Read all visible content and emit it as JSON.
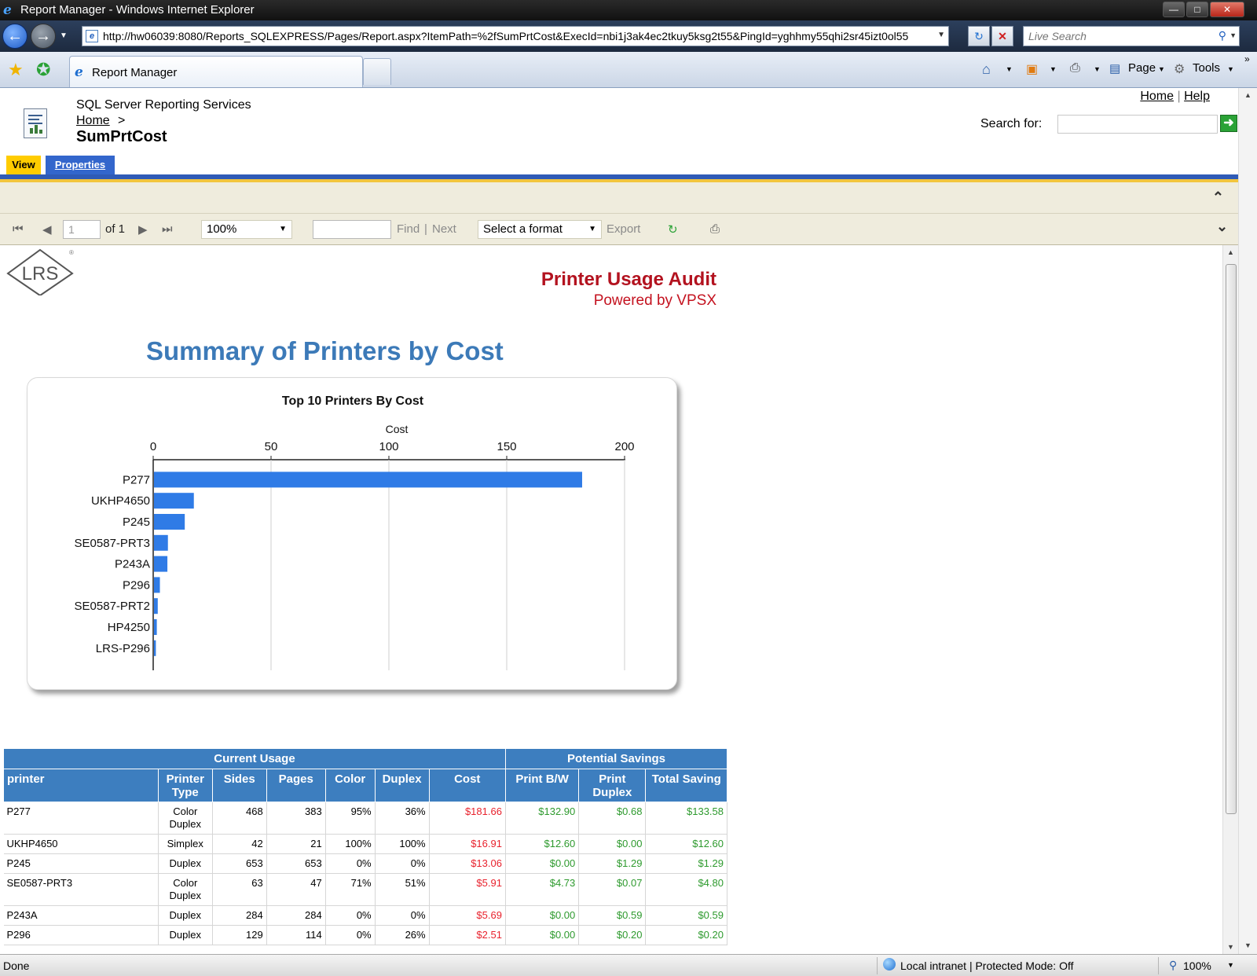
{
  "window": {
    "title": "Report Manager - Windows Internet Explorer",
    "url": "http://hw06039:8080/Reports_SQLEXPRESS/Pages/Report.aspx?ItemPath=%2fSumPrtCost&ExecId=nbi1j3ak4ec2tkuy5ksg2t55&PingId=yghhmy55qhi2sr45izt0ol55",
    "live_search_placeholder": "Live Search",
    "tab_label": "Report Manager",
    "cmd_page": "Page",
    "cmd_tools": "Tools"
  },
  "header": {
    "service_name": "SQL Server Reporting Services",
    "breadcrumb_home": "Home",
    "breadcrumb_sep": ">",
    "report_title": "SumPrtCost",
    "link_home": "Home",
    "link_sep": "|",
    "link_help": "Help",
    "search_label": "Search for:",
    "tab_view": "View",
    "tab_properties": "Properties"
  },
  "toolbar": {
    "page_value": "1",
    "of_label": "of 1",
    "zoom": "100%",
    "find_label": "Find",
    "find_sep": "|",
    "next_label": "Next",
    "format": "Select a format",
    "export_label": "Export"
  },
  "report": {
    "logo_text": "LRS",
    "audit_title": "Printer Usage Audit",
    "audit_subtitle": "Powered by VPSX",
    "summary_title": "Summary of Printers by Cost"
  },
  "chart_data": {
    "type": "bar",
    "orientation": "horizontal",
    "title": "Top 10 Printers By Cost",
    "xlabel": "Cost",
    "ylabel": "",
    "xlim": [
      0,
      200
    ],
    "xticks": [
      0,
      50,
      100,
      150,
      200
    ],
    "categories": [
      "P277",
      "UKHP4650",
      "P245",
      "SE0587-PRT3",
      "P243A",
      "P296",
      "SE0587-PRT2",
      "HP4250",
      "LRS-P296"
    ],
    "values": [
      181.66,
      16.91,
      13.06,
      5.91,
      5.69,
      2.51,
      1.6,
      1.2,
      0.8
    ],
    "bar_color": "#2f7be6",
    "grid": true,
    "legend": "none"
  },
  "table": {
    "group_headers": [
      "Current Usage",
      "Potential Savings"
    ],
    "columns": [
      "printer",
      "Printer Type",
      "Sides",
      "Pages",
      "Color",
      "Duplex",
      "Cost",
      "Print B/W",
      "Print Duplex",
      "Total Saving"
    ],
    "rows": [
      [
        "P277",
        "Color Duplex",
        "468",
        "383",
        "95%",
        "36%",
        "$181.66",
        "$132.90",
        "$0.68",
        "$133.58"
      ],
      [
        "UKHP4650",
        "Simplex",
        "42",
        "21",
        "100%",
        "100%",
        "$16.91",
        "$12.60",
        "$0.00",
        "$12.60"
      ],
      [
        "P245",
        "Duplex",
        "653",
        "653",
        "0%",
        "0%",
        "$13.06",
        "$0.00",
        "$1.29",
        "$1.29"
      ],
      [
        "SE0587-PRT3",
        "Color Duplex",
        "63",
        "47",
        "71%",
        "51%",
        "$5.91",
        "$4.73",
        "$0.07",
        "$4.80"
      ],
      [
        "P243A",
        "Duplex",
        "284",
        "284",
        "0%",
        "0%",
        "$5.69",
        "$0.00",
        "$0.59",
        "$0.59"
      ],
      [
        "P296",
        "Duplex",
        "129",
        "114",
        "0%",
        "26%",
        "$2.51",
        "$0.00",
        "$0.20",
        "$0.20"
      ]
    ]
  },
  "status": {
    "text": "Done",
    "zone": "Local intranet | Protected Mode: Off",
    "zoom": "100%"
  },
  "colors": {
    "accent_blue": "#3d7ebf",
    "cost_red": "#e8222d",
    "saving_green": "#2e9a2e"
  }
}
